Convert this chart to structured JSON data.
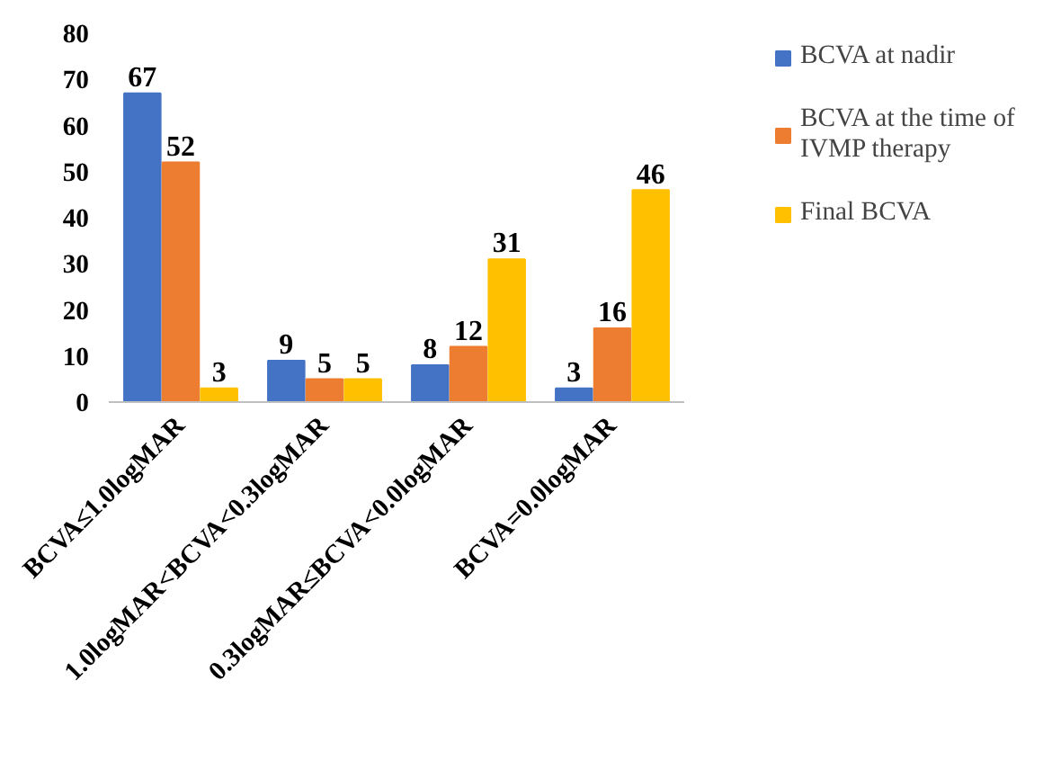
{
  "chart_data": {
    "type": "bar",
    "categories": [
      "BCVA≤1.0logMAR",
      "1.0logMAR<BCVA<0.3logMAR",
      "0.3logMAR≤BCVA<0.0logMAR",
      "BCVA=0.0logMAR"
    ],
    "series": [
      {
        "name": "BCVA at nadir",
        "color": "#4472c4",
        "values": [
          67,
          9,
          8,
          3
        ]
      },
      {
        "name": "BCVA at the time of IVMP therapy",
        "color": "#ed7d31",
        "values": [
          52,
          5,
          12,
          16
        ]
      },
      {
        "name": "Final BCVA",
        "color": "#ffc000",
        "values": [
          3,
          5,
          31,
          46
        ]
      }
    ],
    "ylim": [
      0,
      80
    ],
    "yticks": [
      0,
      10,
      20,
      30,
      40,
      50,
      60,
      70,
      80
    ],
    "grid": false,
    "legend": "right",
    "data_labels": true
  }
}
